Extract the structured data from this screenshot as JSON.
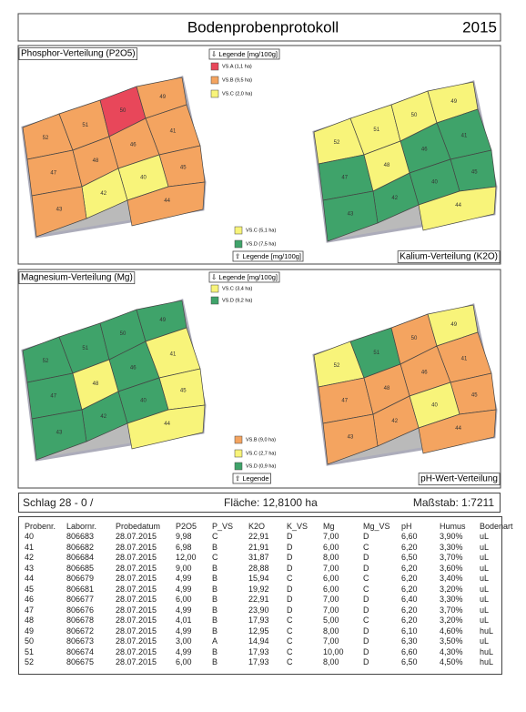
{
  "header": {
    "title": "Bodenprobenprotokoll",
    "year": "2015"
  },
  "maps": [
    {
      "title": "Phosphor-Verteilung (P2O5)",
      "legend_title": "⇩ Legende [mg/100g]",
      "legend": [
        {
          "label": "VS.A  (1,1 ha)",
          "color": "#e8475a"
        },
        {
          "label": "VS.B  (9,5 ha)",
          "color": "#f4a460"
        },
        {
          "label": "VS.C  (2,0 ha)",
          "color": "#f8f47a"
        }
      ],
      "fields": [
        {
          "label": "52",
          "color": "#f4a460"
        },
        {
          "label": "51",
          "color": "#f4a460"
        },
        {
          "label": "50",
          "color": "#e8475a"
        },
        {
          "label": "49",
          "color": "#f4a460"
        },
        {
          "label": "41",
          "color": "#f4a460"
        },
        {
          "label": "46",
          "color": "#f4a460"
        },
        {
          "label": "47",
          "color": "#f4a460"
        },
        {
          "label": "48",
          "color": "#f4a460"
        },
        {
          "label": "45",
          "color": "#f4a460"
        },
        {
          "label": "40",
          "color": "#f8f47a"
        },
        {
          "label": "42",
          "color": "#f8f47a"
        },
        {
          "label": "43",
          "color": "#f4a460"
        },
        {
          "label": "44",
          "color": "#f4a460"
        }
      ]
    },
    {
      "title": "Kalium-Verteilung (K2O)",
      "legend_title": "⇧ Legende [mg/100g]",
      "legend": [
        {
          "label": "VS.C  (5,1 ha)",
          "color": "#f8f47a"
        },
        {
          "label": "VS.D  (7,5 ha)",
          "color": "#3fa36a"
        }
      ],
      "fields": [
        {
          "label": "52",
          "color": "#f8f47a"
        },
        {
          "label": "51",
          "color": "#f8f47a"
        },
        {
          "label": "50",
          "color": "#f8f47a"
        },
        {
          "label": "49",
          "color": "#f8f47a"
        },
        {
          "label": "41",
          "color": "#3fa36a"
        },
        {
          "label": "46",
          "color": "#3fa36a"
        },
        {
          "label": "47",
          "color": "#3fa36a"
        },
        {
          "label": "48",
          "color": "#f8f47a"
        },
        {
          "label": "45",
          "color": "#3fa36a"
        },
        {
          "label": "40",
          "color": "#3fa36a"
        },
        {
          "label": "42",
          "color": "#3fa36a"
        },
        {
          "label": "43",
          "color": "#3fa36a"
        },
        {
          "label": "44",
          "color": "#f8f47a"
        }
      ]
    },
    {
      "title": "Magnesium-Verteilung (Mg)",
      "legend_title": "⇩ Legende [mg/100g]",
      "legend": [
        {
          "label": "VS.C  (3,4 ha)",
          "color": "#f8f47a"
        },
        {
          "label": "VS.D  (9,2 ha)",
          "color": "#3fa36a"
        }
      ],
      "fields": [
        {
          "label": "52",
          "color": "#3fa36a"
        },
        {
          "label": "51",
          "color": "#3fa36a"
        },
        {
          "label": "50",
          "color": "#3fa36a"
        },
        {
          "label": "49",
          "color": "#3fa36a"
        },
        {
          "label": "41",
          "color": "#f8f47a"
        },
        {
          "label": "46",
          "color": "#3fa36a"
        },
        {
          "label": "47",
          "color": "#3fa36a"
        },
        {
          "label": "48",
          "color": "#f8f47a"
        },
        {
          "label": "45",
          "color": "#f8f47a"
        },
        {
          "label": "40",
          "color": "#3fa36a"
        },
        {
          "label": "42",
          "color": "#3fa36a"
        },
        {
          "label": "43",
          "color": "#3fa36a"
        },
        {
          "label": "44",
          "color": "#f8f47a"
        }
      ]
    },
    {
      "title": "pH-Wert-Verteilung",
      "legend_title": "⇧ Legende",
      "legend": [
        {
          "label": "VS.B  (9,0 ha)",
          "color": "#f4a460"
        },
        {
          "label": "VS.C  (2,7 ha)",
          "color": "#f8f47a"
        },
        {
          "label": "VS.D  (0,9 ha)",
          "color": "#3fa36a"
        }
      ],
      "fields": [
        {
          "label": "52",
          "color": "#f8f47a"
        },
        {
          "label": "51",
          "color": "#3fa36a"
        },
        {
          "label": "50",
          "color": "#f4a460"
        },
        {
          "label": "49",
          "color": "#f8f47a"
        },
        {
          "label": "41",
          "color": "#f4a460"
        },
        {
          "label": "46",
          "color": "#f4a460"
        },
        {
          "label": "47",
          "color": "#f4a460"
        },
        {
          "label": "48",
          "color": "#f4a460"
        },
        {
          "label": "45",
          "color": "#f4a460"
        },
        {
          "label": "40",
          "color": "#f8f47a"
        },
        {
          "label": "42",
          "color": "#f4a460"
        },
        {
          "label": "43",
          "color": "#f4a460"
        },
        {
          "label": "44",
          "color": "#f4a460"
        }
      ]
    }
  ],
  "info": {
    "schlag": "Schlag 28 - 0 /",
    "flaeche": "Fläche: 12,8100 ha",
    "massstab": "Maßstab: 1:7211"
  },
  "table": {
    "columns": [
      "Probenr.",
      "Labornr.",
      "Probedatum",
      "P2O5",
      "P_VS",
      "K2O",
      "K_VS",
      "Mg",
      "Mg_VS",
      "pH",
      "Humus",
      "Bodenart"
    ],
    "rows": [
      [
        "40",
        "806683",
        "28.07.2015",
        "9,98",
        "C",
        "22,91",
        "D",
        "7,00",
        "D",
        "6,60",
        "3,90%",
        "uL"
      ],
      [
        "41",
        "806682",
        "28.07.2015",
        "6,98",
        "B",
        "21,91",
        "D",
        "6,00",
        "C",
        "6,20",
        "3,30%",
        "uL"
      ],
      [
        "42",
        "806684",
        "28.07.2015",
        "12,00",
        "C",
        "31,87",
        "D",
        "8,00",
        "D",
        "6,50",
        "3,70%",
        "uL"
      ],
      [
        "43",
        "806685",
        "28.07.2015",
        "9,00",
        "B",
        "28,88",
        "D",
        "7,00",
        "D",
        "6,20",
        "3,60%",
        "uL"
      ],
      [
        "44",
        "806679",
        "28.07.2015",
        "4,99",
        "B",
        "15,94",
        "C",
        "6,00",
        "C",
        "6,20",
        "3,40%",
        "uL"
      ],
      [
        "45",
        "806681",
        "28.07.2015",
        "4,99",
        "B",
        "19,92",
        "D",
        "6,00",
        "C",
        "6,20",
        "3,20%",
        "uL"
      ],
      [
        "46",
        "806677",
        "28.07.2015",
        "6,00",
        "B",
        "22,91",
        "D",
        "7,00",
        "D",
        "6,40",
        "3,30%",
        "uL"
      ],
      [
        "47",
        "806676",
        "28.07.2015",
        "4,99",
        "B",
        "23,90",
        "D",
        "7,00",
        "D",
        "6,20",
        "3,70%",
        "uL"
      ],
      [
        "48",
        "806678",
        "28.07.2015",
        "4,01",
        "B",
        "17,93",
        "C",
        "5,00",
        "C",
        "6,20",
        "3,20%",
        "uL"
      ],
      [
        "49",
        "806672",
        "28.07.2015",
        "4,99",
        "B",
        "12,95",
        "C",
        "8,00",
        "D",
        "6,10",
        "4,60%",
        "huL"
      ],
      [
        "50",
        "806673",
        "28.07.2015",
        "3,00",
        "A",
        "14,94",
        "C",
        "7,00",
        "D",
        "6,30",
        "3,50%",
        "uL"
      ],
      [
        "51",
        "806674",
        "28.07.2015",
        "4,99",
        "B",
        "17,93",
        "C",
        "10,00",
        "D",
        "6,60",
        "4,30%",
        "huL"
      ],
      [
        "52",
        "806675",
        "28.07.2015",
        "6,00",
        "B",
        "17,93",
        "C",
        "8,00",
        "D",
        "6,50",
        "4,50%",
        "huL"
      ]
    ]
  }
}
